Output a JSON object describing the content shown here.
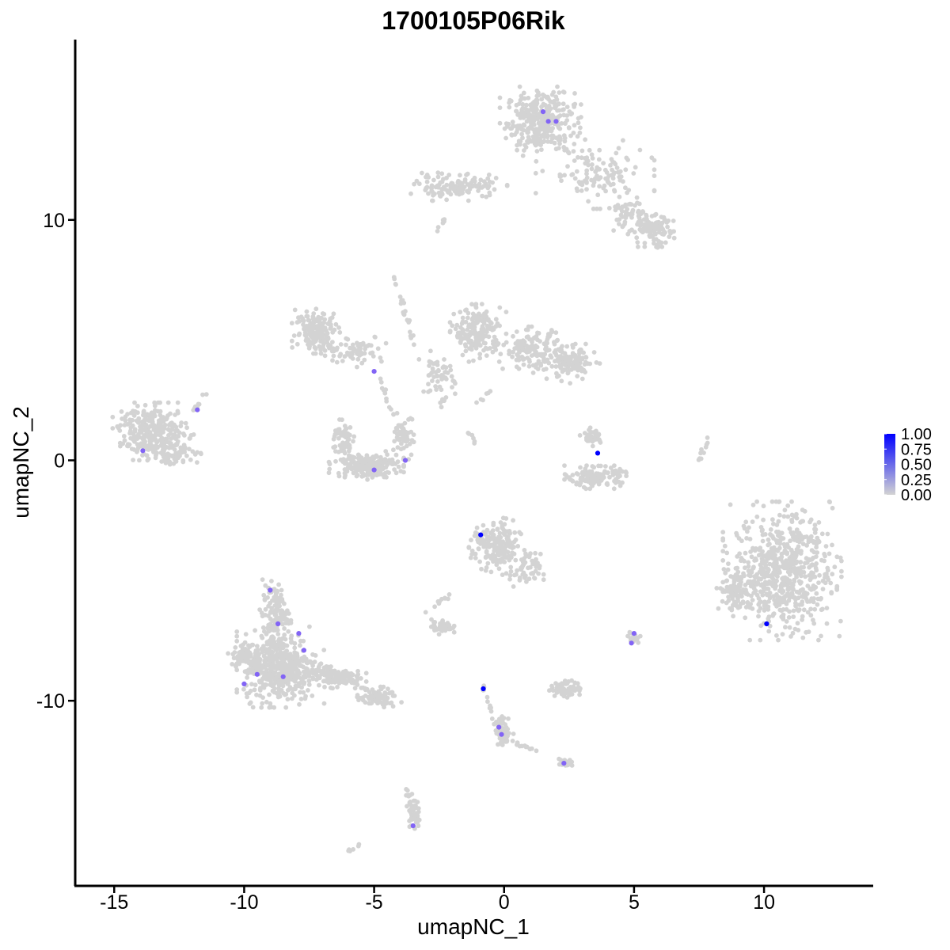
{
  "chart_data": {
    "type": "scatter",
    "title": "1700105P06Rik",
    "xlabel": "umapNC_1",
    "ylabel": "umapNC_2",
    "xlim": [
      -16.5,
      14.2
    ],
    "ylim": [
      -17.7,
      17.5
    ],
    "x_ticks": [
      -15,
      -10,
      -5,
      0,
      5,
      10
    ],
    "x_tick_labels": [
      "-15",
      "-10",
      "-5",
      "0",
      "5",
      "10"
    ],
    "y_ticks": [
      -10,
      0,
      10
    ],
    "y_tick_labels": [
      "-10",
      "0",
      "10"
    ],
    "grid": false,
    "color_low": "#d3d3d3",
    "color_high": "#0000ff",
    "legend": {
      "position": "right",
      "labels": [
        "1.00",
        "0.75",
        "0.50",
        "0.25",
        "0.00"
      ],
      "values": [
        1.0,
        0.75,
        0.5,
        0.25,
        0.0
      ]
    },
    "clusters": [
      {
        "cx": 1.4,
        "cy": 14.1,
        "rx": 1.3,
        "ry": 1.2,
        "n": 340
      },
      {
        "cx": 3.5,
        "cy": 11.9,
        "rx": 1.9,
        "ry": 1.2,
        "n": 120
      },
      {
        "cx": -1.8,
        "cy": 11.4,
        "rx": 1.6,
        "ry": 0.5,
        "n": 130
      },
      {
        "cx": 5.6,
        "cy": 9.6,
        "rx": 0.9,
        "ry": 0.6,
        "n": 110
      },
      {
        "cx": 4.7,
        "cy": 10.4,
        "rx": 0.6,
        "ry": 0.7,
        "n": 40
      },
      {
        "cx": -7.2,
        "cy": 5.4,
        "rx": 0.8,
        "ry": 0.8,
        "n": 160
      },
      {
        "cx": -5.7,
        "cy": 4.6,
        "rx": 1.1,
        "ry": 0.6,
        "n": 70
      },
      {
        "cx": -1.0,
        "cy": 5.3,
        "rx": 0.9,
        "ry": 1.0,
        "n": 190
      },
      {
        "cx": 1.1,
        "cy": 4.6,
        "rx": 1.1,
        "ry": 0.8,
        "n": 140
      },
      {
        "cx": 2.6,
        "cy": 4.0,
        "rx": 0.9,
        "ry": 0.7,
        "n": 120
      },
      {
        "cx": -2.6,
        "cy": 3.6,
        "rx": 0.6,
        "ry": 0.8,
        "n": 50
      },
      {
        "cx": -13.5,
        "cy": 1.2,
        "rx": 1.3,
        "ry": 1.0,
        "n": 280
      },
      {
        "cx": -12.6,
        "cy": 0.3,
        "rx": 0.9,
        "ry": 0.5,
        "n": 60
      },
      {
        "cx": -5.3,
        "cy": -0.2,
        "rx": 1.2,
        "ry": 0.5,
        "n": 220
      },
      {
        "cx": -6.2,
        "cy": 0.9,
        "rx": 0.4,
        "ry": 0.7,
        "n": 60
      },
      {
        "cx": -3.8,
        "cy": 1.0,
        "rx": 0.4,
        "ry": 0.8,
        "n": 60
      },
      {
        "cx": 3.5,
        "cy": -0.7,
        "rx": 1.0,
        "ry": 0.4,
        "n": 140
      },
      {
        "cx": 3.4,
        "cy": 1.0,
        "rx": 0.4,
        "ry": 0.4,
        "n": 35
      },
      {
        "cx": 10.7,
        "cy": -4.6,
        "rx": 1.9,
        "ry": 2.4,
        "n": 650
      },
      {
        "cx": 8.9,
        "cy": -5.4,
        "rx": 0.6,
        "ry": 0.9,
        "n": 90
      },
      {
        "cx": -0.3,
        "cy": -3.6,
        "rx": 0.9,
        "ry": 1.0,
        "n": 190
      },
      {
        "cx": 0.8,
        "cy": -4.6,
        "rx": 0.6,
        "ry": 0.7,
        "n": 60
      },
      {
        "cx": -8.6,
        "cy": -8.6,
        "rx": 1.4,
        "ry": 1.4,
        "n": 460
      },
      {
        "cx": -8.8,
        "cy": -6.4,
        "rx": 0.5,
        "ry": 1.2,
        "n": 120
      },
      {
        "cx": -6.5,
        "cy": -9.0,
        "rx": 1.0,
        "ry": 0.4,
        "n": 110
      },
      {
        "cx": -4.9,
        "cy": -9.9,
        "rx": 0.8,
        "ry": 0.4,
        "n": 70
      },
      {
        "cx": -2.4,
        "cy": -6.9,
        "rx": 0.4,
        "ry": 0.3,
        "n": 55
      },
      {
        "cx": 2.4,
        "cy": -9.5,
        "rx": 0.6,
        "ry": 0.3,
        "n": 70
      },
      {
        "cx": 0.0,
        "cy": -11.3,
        "rx": 0.3,
        "ry": 0.6,
        "n": 45
      },
      {
        "cx": 2.4,
        "cy": -12.6,
        "rx": 0.3,
        "ry": 0.2,
        "n": 22
      },
      {
        "cx": -3.5,
        "cy": -14.6,
        "rx": 0.2,
        "ry": 0.6,
        "n": 40
      },
      {
        "cx": 5.0,
        "cy": -7.4,
        "rx": 0.2,
        "ry": 0.2,
        "n": 14
      },
      {
        "cx": -9.9,
        "cy": -8.2,
        "rx": 0.6,
        "ry": 0.6,
        "n": 80
      }
    ],
    "streaks": [
      {
        "from": [
          -4.2,
          7.6
        ],
        "to": [
          -3.4,
          4.6
        ],
        "n": 22
      },
      {
        "from": [
          -4.8,
          3.4
        ],
        "to": [
          -4.2,
          1.8
        ],
        "n": 12
      },
      {
        "from": [
          -1.8,
          3.5
        ],
        "to": [
          -2.5,
          2.2
        ],
        "n": 10
      },
      {
        "from": [
          -1.4,
          1.2
        ],
        "to": [
          -1.0,
          0.6
        ],
        "n": 6
      },
      {
        "from": [
          7.8,
          0.9
        ],
        "to": [
          7.5,
          0.0
        ],
        "n": 10
      },
      {
        "from": [
          -12.0,
          2.0
        ],
        "to": [
          -11.5,
          2.7
        ],
        "n": 10
      },
      {
        "from": [
          -7.3,
          -8.3
        ],
        "to": [
          -4.5,
          -10.0
        ],
        "n": 30
      },
      {
        "from": [
          -3.0,
          -6.4
        ],
        "to": [
          -2.0,
          -5.5
        ],
        "n": 10
      },
      {
        "from": [
          -0.9,
          -9.3
        ],
        "to": [
          -0.1,
          -11.6
        ],
        "n": 18
      },
      {
        "from": [
          0.0,
          -11.6
        ],
        "to": [
          2.3,
          -12.5
        ],
        "n": 14
      },
      {
        "from": [
          -3.8,
          -13.6
        ],
        "to": [
          -3.3,
          -15.2
        ],
        "n": 18
      },
      {
        "from": [
          -6.0,
          -16.3
        ],
        "to": [
          -5.6,
          -16.0
        ],
        "n": 6
      },
      {
        "from": [
          -2.3,
          10.0
        ],
        "to": [
          -2.8,
          9.3
        ],
        "n": 6
      },
      {
        "from": [
          4.8,
          -7.1
        ],
        "to": [
          5.0,
          -7.6
        ],
        "n": 5
      },
      {
        "from": [
          6.1,
          9.2
        ],
        "to": [
          5.7,
          8.6
        ],
        "n": 5
      },
      {
        "from": [
          -1.0,
          2.4
        ],
        "to": [
          -0.4,
          3.0
        ],
        "n": 6
      }
    ],
    "expressing_points": [
      {
        "x": 1.5,
        "y": 14.5,
        "value": 0.55
      },
      {
        "x": 1.7,
        "y": 14.1,
        "value": 0.55
      },
      {
        "x": 2.0,
        "y": 14.1,
        "value": 0.55
      },
      {
        "x": -5.0,
        "y": 3.7,
        "value": 0.55
      },
      {
        "x": -11.8,
        "y": 2.1,
        "value": 0.55
      },
      {
        "x": -13.9,
        "y": 0.4,
        "value": 0.55
      },
      {
        "x": -5.0,
        "y": -0.4,
        "value": 0.55
      },
      {
        "x": -3.8,
        "y": 0.0,
        "value": 0.55
      },
      {
        "x": 3.6,
        "y": 0.3,
        "value": 1.0
      },
      {
        "x": -0.9,
        "y": -3.1,
        "value": 1.0
      },
      {
        "x": 10.1,
        "y": -6.8,
        "value": 1.0
      },
      {
        "x": 5.0,
        "y": -7.2,
        "value": 0.55
      },
      {
        "x": 4.9,
        "y": -7.6,
        "value": 0.55
      },
      {
        "x": -9.0,
        "y": -5.4,
        "value": 0.55
      },
      {
        "x": -8.7,
        "y": -6.8,
        "value": 0.55
      },
      {
        "x": -7.9,
        "y": -7.2,
        "value": 0.55
      },
      {
        "x": -7.7,
        "y": -7.9,
        "value": 0.55
      },
      {
        "x": -9.5,
        "y": -8.9,
        "value": 0.55
      },
      {
        "x": -10.0,
        "y": -9.3,
        "value": 0.55
      },
      {
        "x": -8.5,
        "y": -9.0,
        "value": 0.55
      },
      {
        "x": -0.8,
        "y": -9.5,
        "value": 1.0
      },
      {
        "x": -0.2,
        "y": -11.1,
        "value": 0.55
      },
      {
        "x": -0.1,
        "y": -11.4,
        "value": 0.55
      },
      {
        "x": 2.3,
        "y": -12.6,
        "value": 0.55
      },
      {
        "x": -3.5,
        "y": -15.2,
        "value": 0.55
      }
    ]
  }
}
